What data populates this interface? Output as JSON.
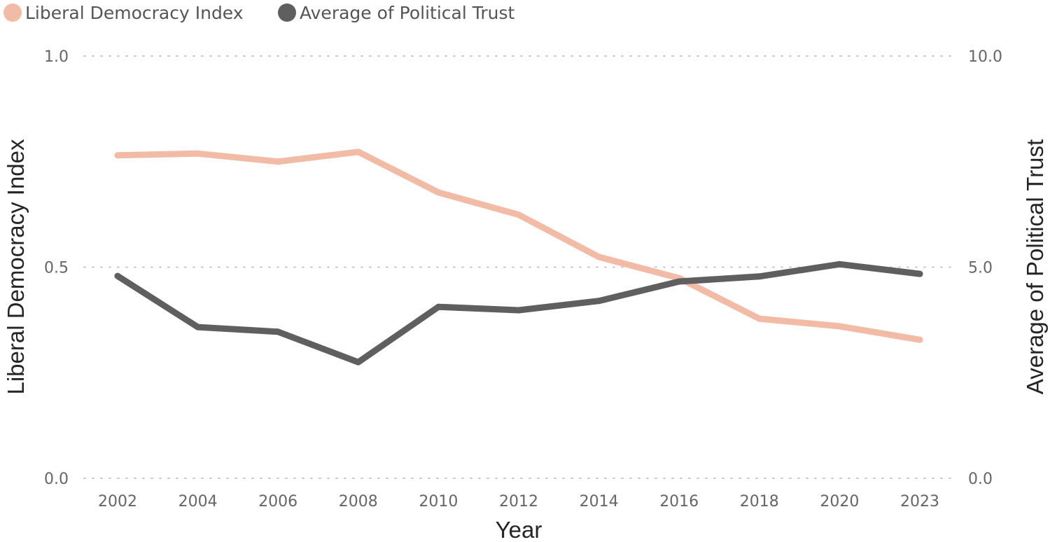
{
  "chart_data": {
    "type": "line",
    "title": "",
    "xlabel": "Year",
    "ylabel": "Liberal Democracy Index",
    "y2label": "Average of Political Trust",
    "categories": [
      "2002",
      "2004",
      "2006",
      "2008",
      "2010",
      "2012",
      "2014",
      "2016",
      "2018",
      "2020",
      "2023"
    ],
    "ylim": [
      0,
      1
    ],
    "y2lim": [
      0,
      10
    ],
    "yticks": [
      "0.0",
      "0.5",
      "1.0"
    ],
    "y2ticks": [
      "0.0",
      "5.0",
      "10.0"
    ],
    "grid": true,
    "legend": "top-left",
    "series": [
      {
        "name": "Liberal Democracy Index",
        "axis": "left",
        "color": "#F2BBA5",
        "values": [
          0.765,
          0.769,
          0.75,
          0.773,
          0.677,
          0.624,
          0.524,
          0.474,
          0.378,
          0.36,
          0.328
        ]
      },
      {
        "name": "Average of Political Trust",
        "axis": "right",
        "color": "#5F5F5F",
        "values": [
          4.79,
          3.58,
          3.47,
          2.75,
          4.06,
          3.98,
          4.2,
          4.66,
          4.78,
          5.07,
          4.84
        ]
      }
    ]
  }
}
